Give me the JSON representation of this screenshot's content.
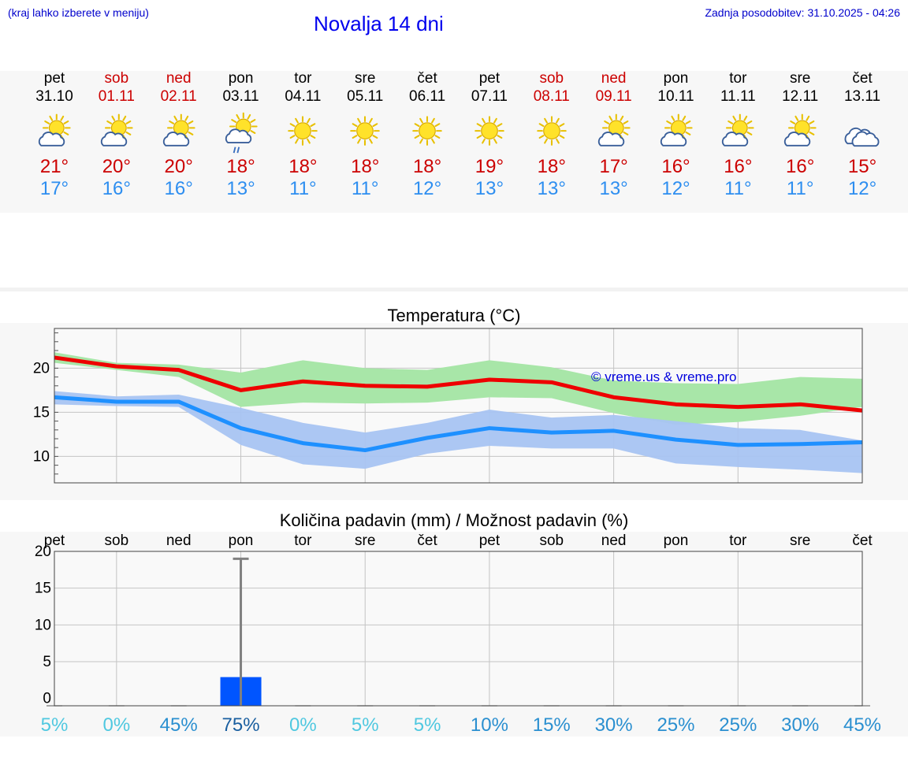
{
  "header": {
    "hint": "(kraj lahko izberete v meniju)",
    "title": "Novalja 14 dni",
    "updated": "Zadnja posodobitev: 31.10.2025 - 04:26"
  },
  "days": [
    {
      "name": "pet",
      "date": "31.10",
      "weekend": false,
      "icon": "sun-cloud-icon",
      "tmax": "21°",
      "tmin": "17°"
    },
    {
      "name": "sob",
      "date": "01.11",
      "weekend": true,
      "icon": "sun-cloud-icon",
      "tmax": "20°",
      "tmin": "16°"
    },
    {
      "name": "ned",
      "date": "02.11",
      "weekend": true,
      "icon": "sun-cloud-icon",
      "tmax": "20°",
      "tmin": "16°"
    },
    {
      "name": "pon",
      "date": "03.11",
      "weekend": false,
      "icon": "sun-cloud-rain-icon",
      "tmax": "18°",
      "tmin": "13°"
    },
    {
      "name": "tor",
      "date": "04.11",
      "weekend": false,
      "icon": "sun-icon",
      "tmax": "18°",
      "tmin": "11°"
    },
    {
      "name": "sre",
      "date": "05.11",
      "weekend": false,
      "icon": "sun-icon",
      "tmax": "18°",
      "tmin": "11°"
    },
    {
      "name": "čet",
      "date": "06.11",
      "weekend": false,
      "icon": "sun-icon",
      "tmax": "18°",
      "tmin": "12°"
    },
    {
      "name": "pet",
      "date": "07.11",
      "weekend": false,
      "icon": "sun-icon",
      "tmax": "19°",
      "tmin": "13°"
    },
    {
      "name": "sob",
      "date": "08.11",
      "weekend": true,
      "icon": "sun-icon",
      "tmax": "18°",
      "tmin": "13°"
    },
    {
      "name": "ned",
      "date": "09.11",
      "weekend": true,
      "icon": "sun-cloud-icon",
      "tmax": "17°",
      "tmin": "13°"
    },
    {
      "name": "pon",
      "date": "10.11",
      "weekend": false,
      "icon": "sun-cloud-icon",
      "tmax": "16°",
      "tmin": "12°"
    },
    {
      "name": "tor",
      "date": "11.11",
      "weekend": false,
      "icon": "sun-cloud-icon",
      "tmax": "16°",
      "tmin": "11°"
    },
    {
      "name": "sre",
      "date": "12.11",
      "weekend": false,
      "icon": "sun-cloud-icon",
      "tmax": "16°",
      "tmin": "11°"
    },
    {
      "name": "čet",
      "date": "13.11",
      "weekend": false,
      "icon": "cloud-icon",
      "tmax": "15°",
      "tmin": "12°"
    }
  ],
  "colors": {
    "max_line": "#ee0000",
    "min_line": "#1e90ff",
    "max_band": "#a8e6a8",
    "min_band": "#a8c4f2",
    "overlap_band": "#7cc9a8",
    "bar": "#0055ff",
    "prob_low": "#4fc8e0",
    "prob_mid": "#2a8fd0",
    "prob_high": "#1a5fa0"
  },
  "chart_data": [
    {
      "type": "line",
      "title": "Temperatura (°C)",
      "watermark": "© vreme.us & vreme.pro",
      "ylim": [
        7,
        24.5
      ],
      "yticks": [
        10,
        15,
        20
      ],
      "x": [
        0,
        1,
        2,
        3,
        4,
        5,
        6,
        7,
        8,
        9,
        10,
        11,
        12,
        13
      ],
      "series": [
        {
          "name": "max",
          "values": [
            21.2,
            20.2,
            19.8,
            17.5,
            18.5,
            18.0,
            17.9,
            18.7,
            18.4,
            16.7,
            15.9,
            15.6,
            15.9,
            15.2
          ]
        },
        {
          "name": "min",
          "values": [
            16.7,
            16.2,
            16.2,
            13.2,
            11.5,
            10.7,
            12.1,
            13.2,
            12.7,
            12.9,
            11.9,
            11.3,
            11.4,
            11.6
          ]
        }
      ],
      "bands": [
        {
          "name": "max-range",
          "upper": [
            21.8,
            20.6,
            20.4,
            19.5,
            20.9,
            20.0,
            19.8,
            20.9,
            20.1,
            18.6,
            18.3,
            18.2,
            19.0,
            18.8
          ],
          "lower": [
            20.6,
            19.8,
            19.0,
            15.6,
            16.1,
            16.0,
            16.1,
            16.7,
            16.6,
            14.9,
            13.6,
            13.9,
            14.6,
            15.6
          ]
        },
        {
          "name": "min-range",
          "upper": [
            17.4,
            16.8,
            17.0,
            15.5,
            13.8,
            12.7,
            13.8,
            15.3,
            14.4,
            14.7,
            14.0,
            13.2,
            13.0,
            11.8
          ],
          "lower": [
            15.9,
            15.7,
            15.6,
            11.3,
            9.1,
            8.6,
            10.3,
            11.2,
            10.9,
            10.9,
            9.2,
            8.8,
            8.5,
            8.1
          ]
        }
      ]
    },
    {
      "type": "bar",
      "title": "Količina padavin (mm) / Možnost padavin (%)",
      "ylim": [
        -1,
        20
      ],
      "yticks": [
        0,
        5,
        10,
        15,
        20
      ],
      "categories": [
        "pet",
        "sob",
        "ned",
        "pon",
        "tor",
        "sre",
        "čet",
        "pet",
        "sob",
        "ned",
        "pon",
        "tor",
        "sre",
        "čet"
      ],
      "values": [
        0,
        0,
        0,
        2.9,
        0,
        0,
        0,
        0,
        0,
        0,
        0,
        0,
        0,
        0
      ],
      "error_high": [
        0,
        0,
        0,
        19,
        0,
        0,
        0,
        0,
        0,
        0,
        0,
        0,
        0,
        0
      ],
      "probability": [
        "5%",
        "0%",
        "45%",
        "75%",
        "0%",
        "5%",
        "5%",
        "10%",
        "15%",
        "30%",
        "25%",
        "25%",
        "30%",
        "45%"
      ]
    }
  ]
}
